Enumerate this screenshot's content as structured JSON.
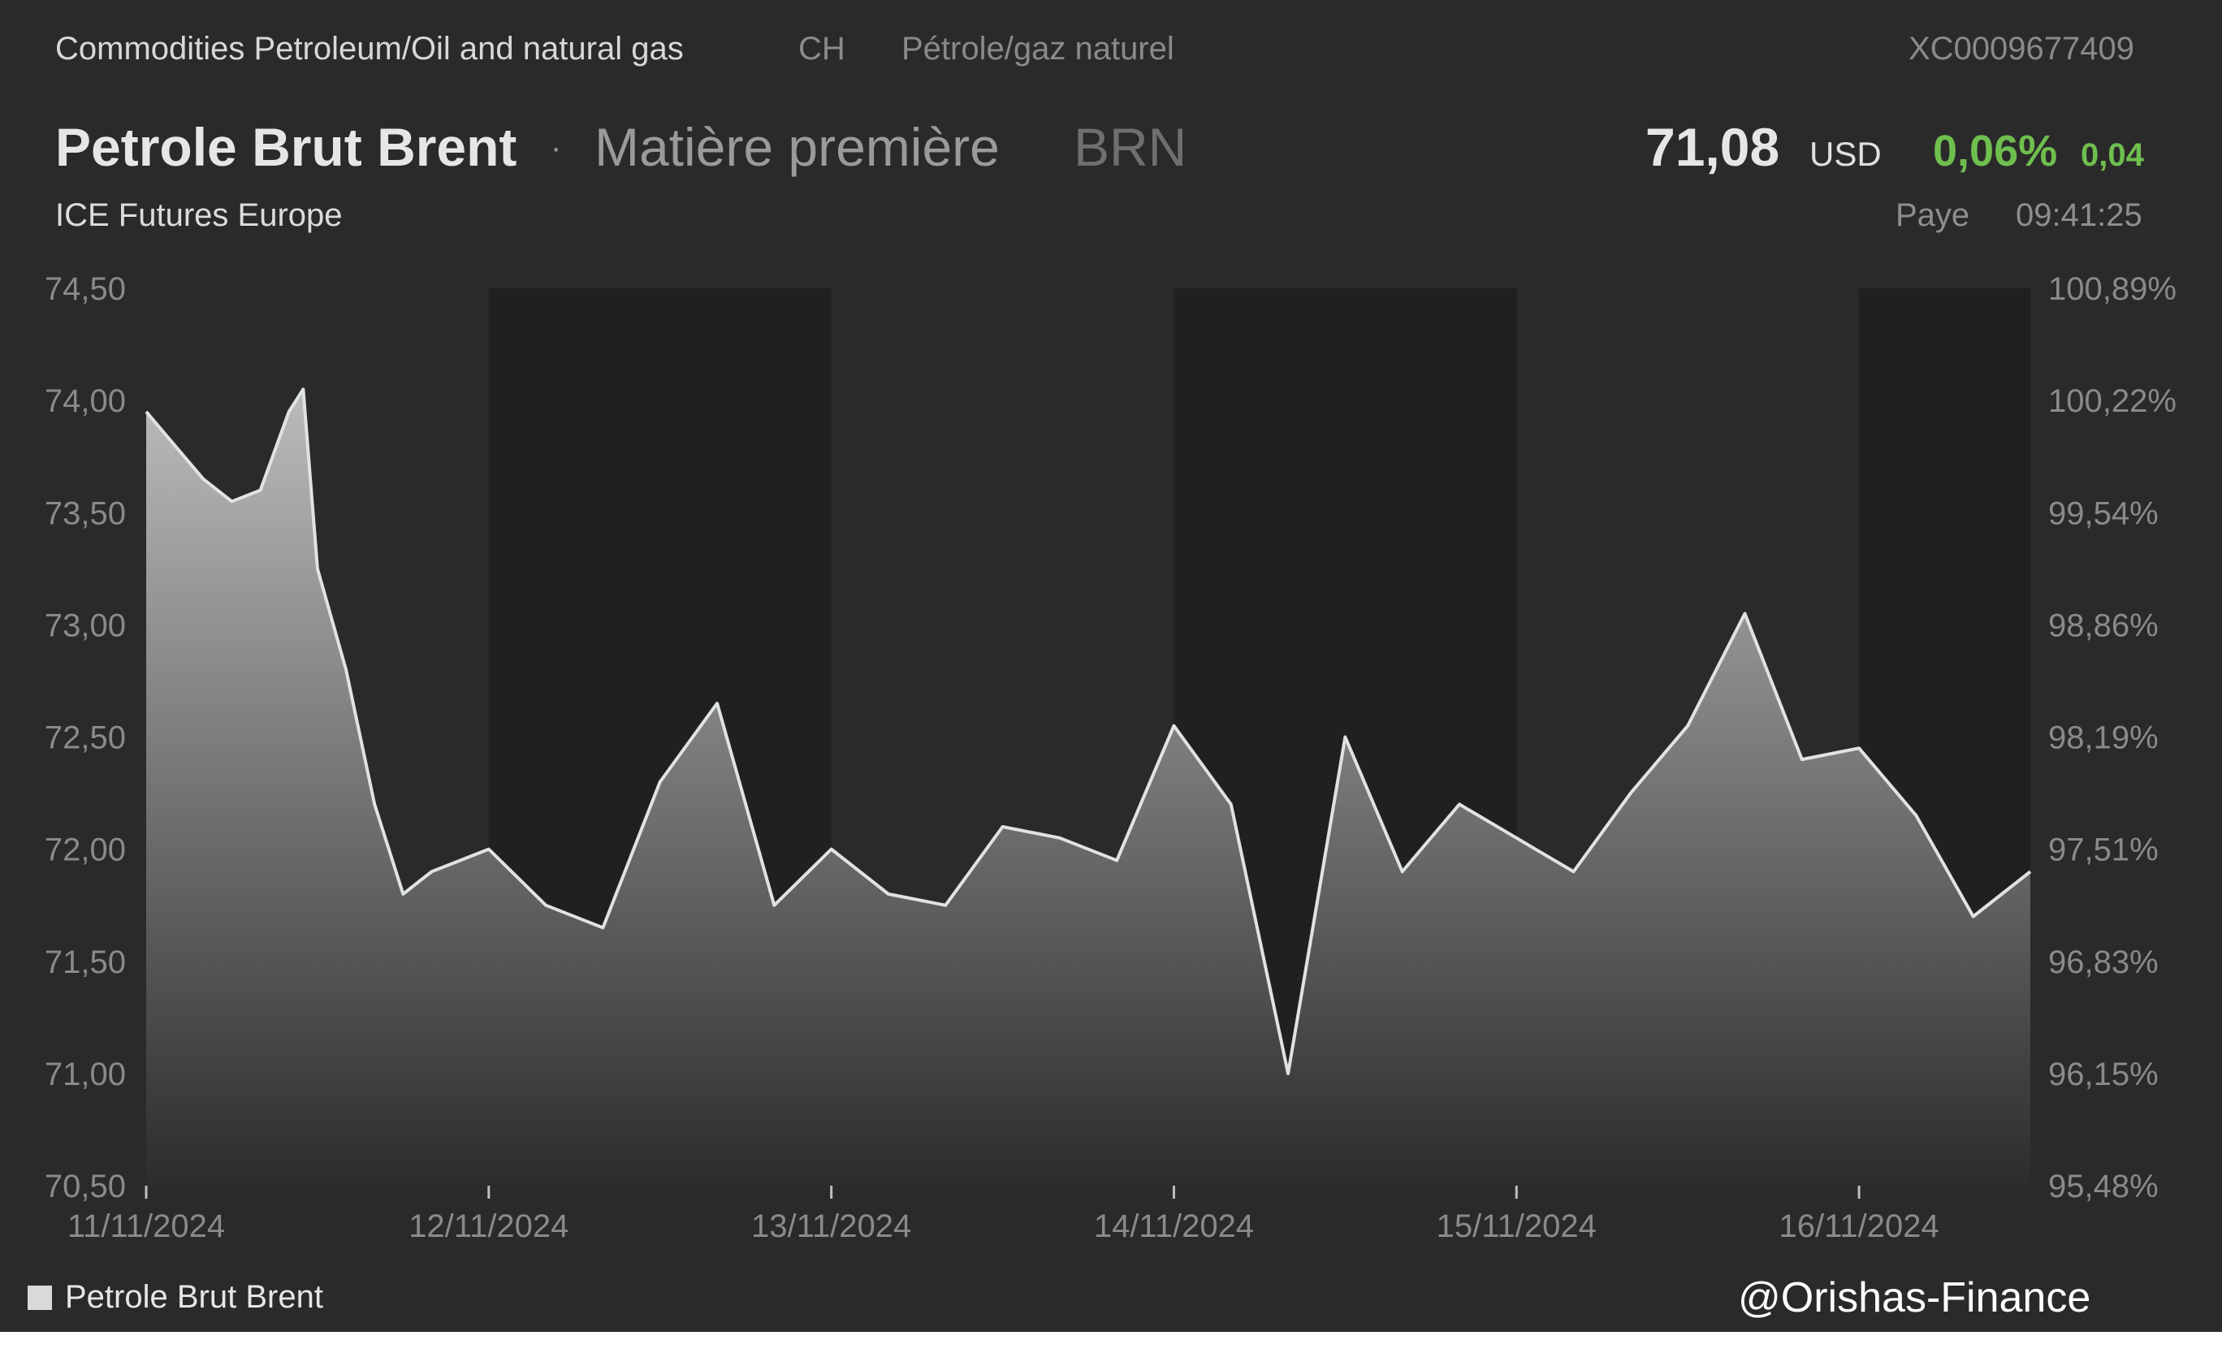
{
  "header": {
    "category": "Commodities Petroleum/Oil and natural gas",
    "country": "CH",
    "category_fr": "Pétrole/gaz naturel",
    "isin": "XC0009677409",
    "name": "Petrole Brut Brent",
    "separator": "·",
    "asset_type": "Matière première",
    "ticker": "BRN",
    "exchange": "ICE Futures Europe",
    "price": "71,08",
    "currency": "USD",
    "change_pct": "0,06%",
    "change_abs": "0,04",
    "status_label": "Paye",
    "time": "09:41:25"
  },
  "legend": {
    "label": "Petrole Brut Brent"
  },
  "watermark": "@Orishas-Finance",
  "colors": {
    "background": "#2a2a2a",
    "band_dark": "#202020",
    "line": "#dfe3e3",
    "positive": "#6fbf4f"
  },
  "chart_data": {
    "type": "area",
    "series": [
      {
        "name": "Petrole Brut Brent",
        "x": [
          "11/11/2024 00:00",
          "11/11/2024 02:00",
          "11/11/2024 04:00",
          "11/11/2024 06:00",
          "11/11/2024 08:00",
          "11/11/2024 10:00",
          "11/11/2024 11:00",
          "11/11/2024 12:00",
          "11/11/2024 14:00",
          "11/11/2024 16:00",
          "11/11/2024 18:00",
          "11/11/2024 20:00",
          "12/11/2024 00:00",
          "12/11/2024 04:00",
          "12/11/2024 08:00",
          "12/11/2024 12:00",
          "12/11/2024 16:00",
          "12/11/2024 20:00",
          "13/11/2024 00:00",
          "13/11/2024 04:00",
          "13/11/2024 08:00",
          "13/11/2024 12:00",
          "13/11/2024 16:00",
          "13/11/2024 20:00",
          "14/11/2024 00:00",
          "14/11/2024 04:00",
          "14/11/2024 08:00",
          "14/11/2024 12:00",
          "14/11/2024 16:00",
          "14/11/2024 20:00",
          "15/11/2024 00:00",
          "15/11/2024 04:00",
          "15/11/2024 08:00",
          "15/11/2024 12:00",
          "15/11/2024 16:00",
          "15/11/2024 20:00",
          "16/11/2024 00:00",
          "16/11/2024 04:00",
          "16/11/2024 08:00",
          "16/11/2024 12:00"
        ],
        "y": [
          73.95,
          73.8,
          73.65,
          73.55,
          73.6,
          73.95,
          74.05,
          73.25,
          72.8,
          72.2,
          71.8,
          71.9,
          72.0,
          71.75,
          71.65,
          72.3,
          72.65,
          71.75,
          72.0,
          71.8,
          71.75,
          72.1,
          72.05,
          71.95,
          72.55,
          72.2,
          71.0,
          72.5,
          71.9,
          72.2,
          72.05,
          71.9,
          72.25,
          72.55,
          73.05,
          72.4,
          72.45,
          72.15,
          71.7,
          71.9
        ]
      }
    ],
    "xlabel_ticks": [
      "11/11/2024",
      "12/11/2024",
      "13/11/2024",
      "14/11/2024",
      "15/11/2024",
      "16/11/2024"
    ],
    "y_ticks_left": [
      "74,50",
      "74,00",
      "73,50",
      "73,00",
      "72,50",
      "72,00",
      "71,50",
      "71,00",
      "70,50"
    ],
    "y_ticks_right": [
      "100,89%",
      "100,22%",
      "99,54%",
      "98,86%",
      "98,19%",
      "97,51%",
      "96,83%",
      "96,15%",
      "95,48%"
    ],
    "ylim": [
      70.5,
      74.5
    ],
    "xlim": [
      "11/11/2024 00:00",
      "16/11/2024 12:00"
    ],
    "grid": false,
    "legend_position": "bottom-left"
  }
}
